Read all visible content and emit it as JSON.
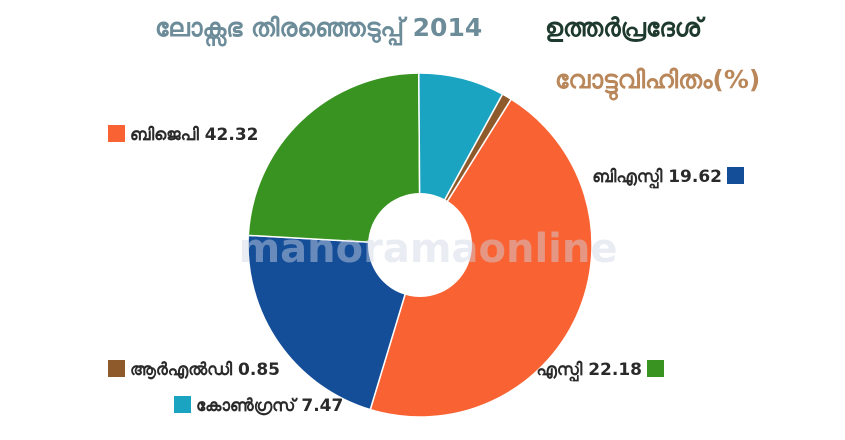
{
  "chart_data": {
    "type": "pie",
    "title_part1": "ലോക്സഭ തിരഞ്ഞെടുപ്പ് 2014",
    "title_part2": "ഉത്തർപ്രദേശ്",
    "subtitle": "വോട്ടുവിഹിതം(%)",
    "watermark": "manoramaonline",
    "donut": true,
    "slices": [
      {
        "label": "ബിജെപി",
        "value": 42.32,
        "color": "#f96334"
      },
      {
        "label": "ബിഎസ്പി",
        "value": 19.62,
        "color": "#154e98"
      },
      {
        "label": "എസ്പി",
        "value": 22.18,
        "color": "#389320"
      },
      {
        "label": "കോൺഗ്രസ്",
        "value": 7.47,
        "color": "#1ba3c2"
      },
      {
        "label": "ആർഎൽഡി",
        "value": 0.85,
        "color": "#8f5a2b"
      }
    ]
  }
}
